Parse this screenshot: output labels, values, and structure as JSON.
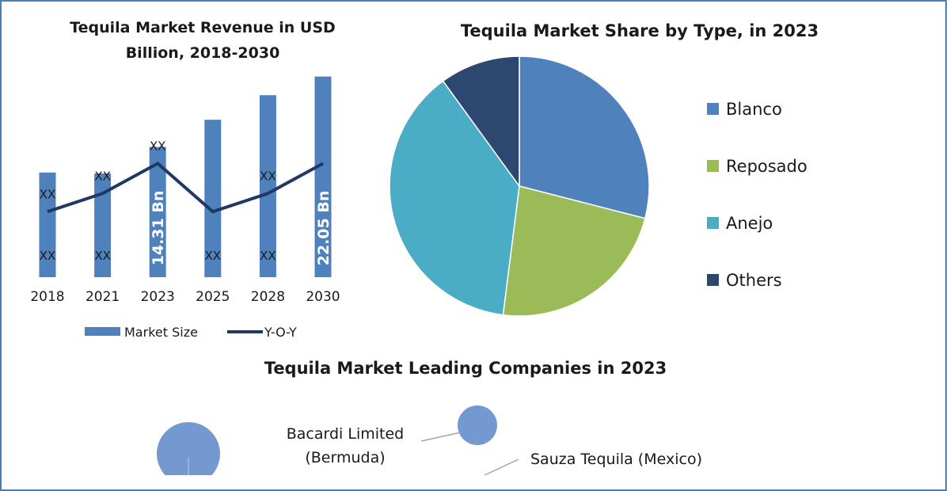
{
  "colors": {
    "frame": "#4a7fb5",
    "bar": "#4f81bd",
    "line": "#1f3864",
    "blanco": "#4f81bd",
    "reposado": "#9bbb59",
    "anejo": "#4bacc6",
    "others": "#2c4770",
    "bubble": "#7399d0"
  },
  "chart_data": [
    {
      "type": "bar",
      "title_line1": "Tequila Market Revenue in USD",
      "title_line2": "Billion, 2018-2030",
      "categories": [
        "2018",
        "2021",
        "2023",
        "2025",
        "2028",
        "2030"
      ],
      "series": [
        {
          "name": "Market Size",
          "values": [
            11.5,
            11.4,
            14.31,
            17.3,
            20.0,
            22.05
          ],
          "bar_labels": [
            "XX",
            "XX",
            "14.31 Bn",
            "XX",
            "XX",
            "22.05 Bn"
          ]
        },
        {
          "name": "Y-O-Y",
          "values": [
            7.2,
            9.2,
            12.5,
            7.2,
            9.2,
            12.5
          ],
          "point_labels": [
            "XX",
            "XX",
            "XX",
            "",
            "XX",
            ""
          ]
        }
      ],
      "ylim": [
        0,
        23.5
      ],
      "legend": "bottom"
    },
    {
      "type": "pie",
      "title": "Tequila Market Share by Type, in 2023",
      "labels": [
        "Blanco",
        "Reposado",
        "Anejo",
        "Others"
      ],
      "values": [
        29,
        23,
        38,
        10
      ],
      "legend": "right"
    },
    {
      "type": "bubble",
      "title": "Tequila Market Leading Companies in 2023",
      "companies": [
        {
          "line1": "Bacardi Limited",
          "line2": "(Bermuda)"
        },
        {
          "line1": "Sauza Tequila (Mexico)",
          "line2": ""
        }
      ]
    }
  ]
}
